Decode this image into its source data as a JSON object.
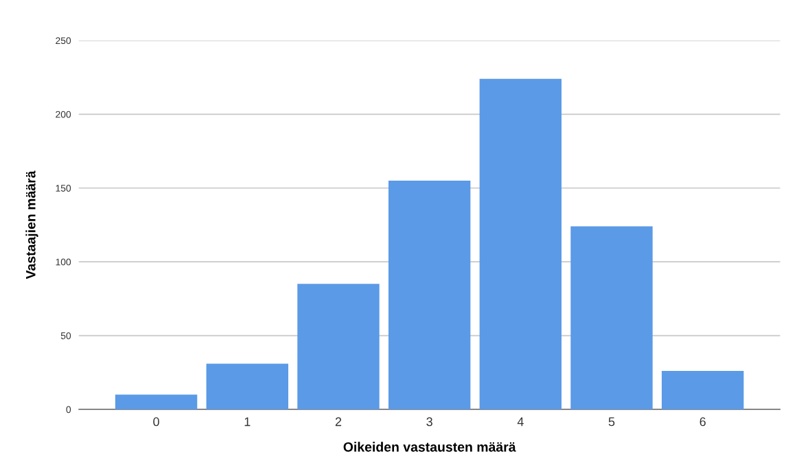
{
  "chart_data": {
    "type": "bar",
    "xlabel": "Oikeiden vastausten määrä",
    "ylabel": "Vastaajien määrä",
    "categories": [
      "0",
      "1",
      "2",
      "3",
      "4",
      "5",
      "6"
    ],
    "values": [
      10,
      31,
      85,
      155,
      224,
      124,
      26
    ],
    "color": "#5b9ae6",
    "ylim": [
      0,
      250
    ],
    "yticks": [
      0,
      50,
      100,
      150,
      200,
      250
    ],
    "grid": "y"
  }
}
